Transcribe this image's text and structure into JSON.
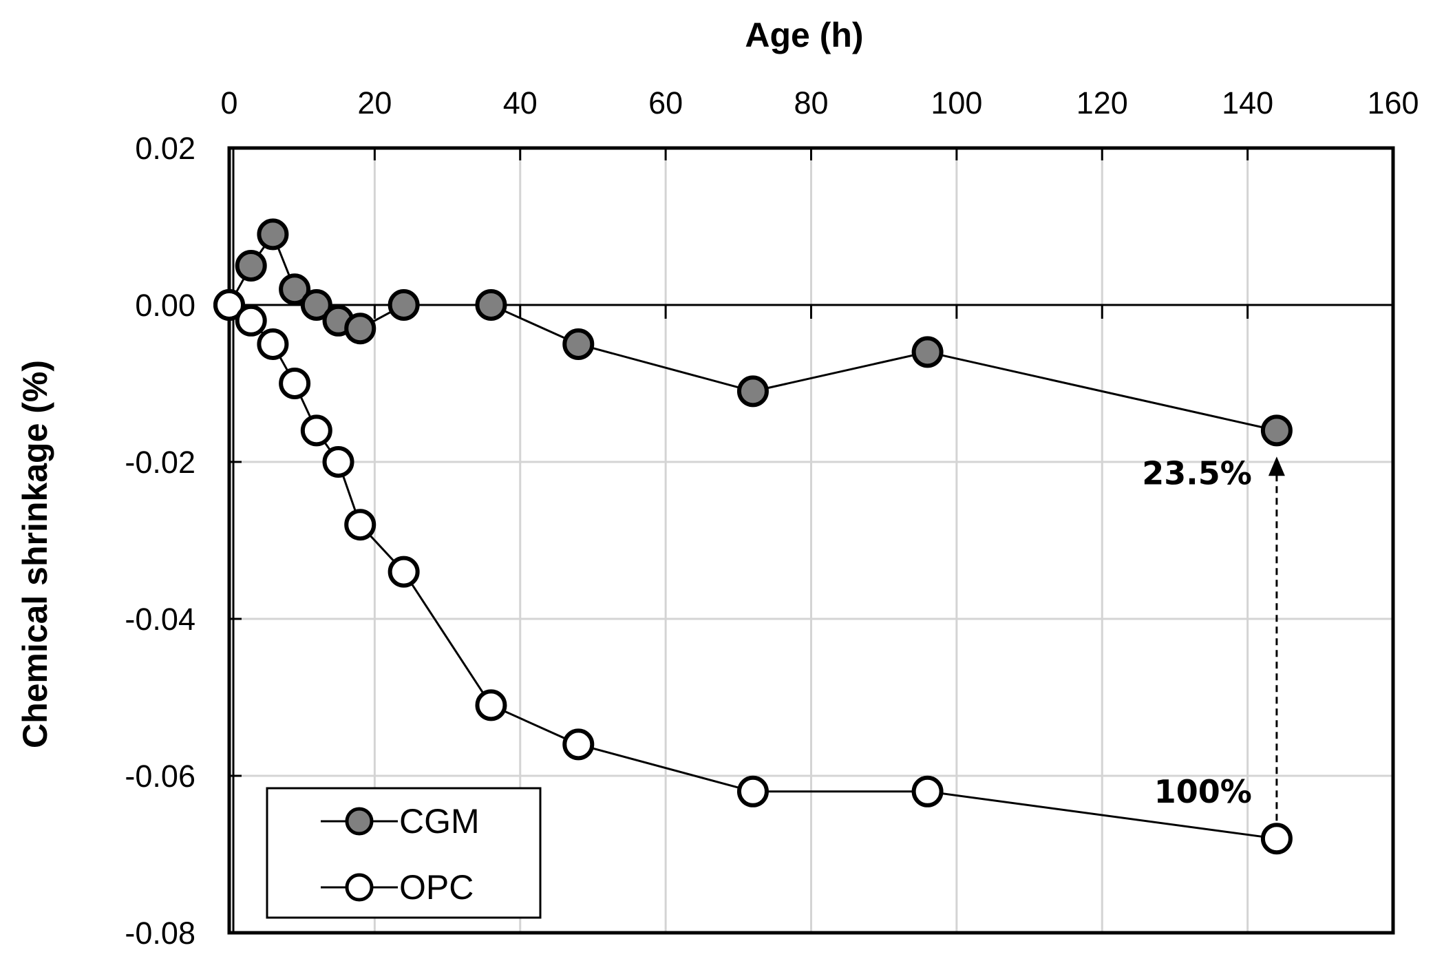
{
  "chart_data": {
    "type": "line",
    "xlabel": "Age (h)",
    "ylabel": "Chemical shrinkage (%)",
    "xlim": [
      0,
      160
    ],
    "ylim": [
      -0.08,
      0.02
    ],
    "x_ticks": [
      0,
      20,
      40,
      60,
      80,
      100,
      120,
      140,
      160
    ],
    "x_tick_labels": [
      "0",
      "20",
      "40",
      "60",
      "80",
      "100",
      "120",
      "140",
      "160"
    ],
    "y_ticks": [
      0.02,
      0,
      -0.02,
      -0.04,
      -0.06,
      -0.08
    ],
    "y_tick_labels": [
      "0.02",
      "0.00",
      "-0.02",
      "-0.04",
      "-0.06",
      "-0.08"
    ],
    "x_axis_position": "top",
    "grid": true,
    "legend_position": "bottom-left",
    "series": [
      {
        "name": "CGM",
        "marker": "filled-circle",
        "color": "#808080",
        "x": [
          0,
          3,
          6,
          9,
          12,
          15,
          18,
          24,
          36,
          48,
          72,
          96,
          144
        ],
        "y": [
          0.0,
          0.005,
          0.009,
          0.002,
          0.0,
          -0.002,
          -0.003,
          0.0,
          0.0,
          -0.005,
          -0.011,
          -0.006,
          -0.016
        ]
      },
      {
        "name": "OPC",
        "marker": "open-circle",
        "color": "#ffffff",
        "x": [
          0,
          3,
          6,
          9,
          12,
          15,
          18,
          24,
          36,
          48,
          72,
          96,
          144
        ],
        "y": [
          0.0,
          -0.002,
          -0.005,
          -0.01,
          -0.016,
          -0.02,
          -0.028,
          -0.034,
          -0.051,
          -0.056,
          -0.062,
          -0.062,
          -0.068
        ]
      }
    ],
    "annotations": [
      {
        "text": "23.5%",
        "x": 144,
        "y": -0.016
      },
      {
        "text": "100%",
        "x": 144,
        "y": -0.068
      }
    ],
    "arrow": {
      "from_x": 144,
      "from_y": -0.068,
      "to_x": 144,
      "to_y": -0.0195,
      "style": "dashed"
    }
  }
}
